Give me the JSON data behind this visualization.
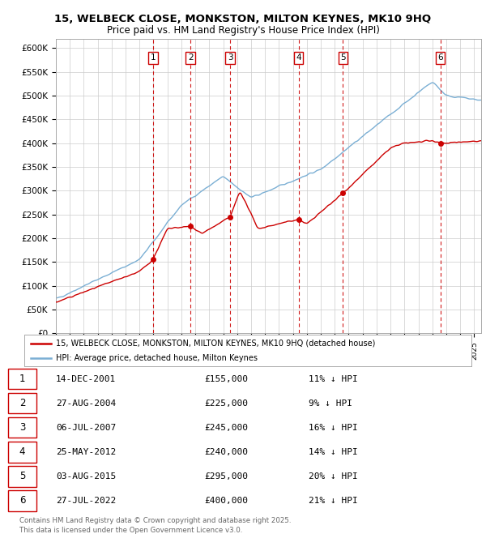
{
  "title": "15, WELBECK CLOSE, MONKSTON, MILTON KEYNES, MK10 9HQ",
  "subtitle": "Price paid vs. HM Land Registry's House Price Index (HPI)",
  "ylim": [
    0,
    620000
  ],
  "yticks": [
    0,
    50000,
    100000,
    150000,
    200000,
    250000,
    300000,
    350000,
    400000,
    450000,
    500000,
    550000,
    600000
  ],
  "ytick_labels": [
    "£0",
    "£50K",
    "£100K",
    "£150K",
    "£200K",
    "£250K",
    "£300K",
    "£350K",
    "£400K",
    "£450K",
    "£500K",
    "£550K",
    "£600K"
  ],
  "xlim_start": 1995.0,
  "xlim_end": 2025.5,
  "transactions": [
    {
      "num": 1,
      "date": "14-DEC-2001",
      "year": 2001.95,
      "price": 155000,
      "pct": "11%"
    },
    {
      "num": 2,
      "date": "27-AUG-2004",
      "year": 2004.65,
      "price": 225000,
      "pct": "9%"
    },
    {
      "num": 3,
      "date": "06-JUL-2007",
      "year": 2007.51,
      "price": 245000,
      "pct": "16%"
    },
    {
      "num": 4,
      "date": "25-MAY-2012",
      "year": 2012.4,
      "price": 240000,
      "pct": "14%"
    },
    {
      "num": 5,
      "date": "03-AUG-2015",
      "year": 2015.59,
      "price": 295000,
      "pct": "20%"
    },
    {
      "num": 6,
      "date": "27-JUL-2022",
      "year": 2022.57,
      "price": 400000,
      "pct": "21%"
    }
  ],
  "legend_line1": "15, WELBECK CLOSE, MONKSTON, MILTON KEYNES, MK10 9HQ (detached house)",
  "legend_line2": "HPI: Average price, detached house, Milton Keynes",
  "footer": "Contains HM Land Registry data © Crown copyright and database right 2025.\nThis data is licensed under the Open Government Licence v3.0.",
  "red_color": "#cc0000",
  "blue_color": "#7bafd4",
  "grid_color": "#cccccc",
  "background_color": "#ffffff"
}
